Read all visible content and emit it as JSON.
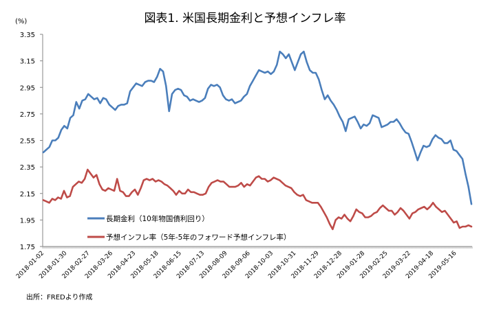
{
  "chart_data": {
    "type": "line",
    "title": "図表1. 米国長期金利と予想インフレ率",
    "ylabel": "(%)",
    "xlabel": "",
    "ylim": [
      1.75,
      3.35
    ],
    "yticks": [
      "3.35",
      "3.15",
      "2.95",
      "2.75",
      "2.55",
      "2.35",
      "2.15",
      "1.95",
      "1.75"
    ],
    "ytick_values": [
      3.35,
      3.15,
      2.95,
      2.75,
      2.55,
      2.35,
      2.15,
      1.95,
      1.75
    ],
    "xtick_labels": [
      "2018-01-02",
      "2018-01-30",
      "2018-02-27",
      "2018-03-26",
      "2018-04-23",
      "2018-05-18",
      "2018-06-15",
      "2018-07-13",
      "2018-08-09",
      "2018-09-06",
      "2018-10-03",
      "2018-10-31",
      "2018-11-29",
      "2018-12-28",
      "2019-01-28",
      "2019-02-25",
      "2019-03-22",
      "2019-04-18",
      "2019-05-16"
    ],
    "grid": false,
    "legend_position": "bottom-left-inside",
    "source": "出所：FREDより作成",
    "series": [
      {
        "name": "長期金利（10年物国債利回り）",
        "color": "#4A7EBB",
        "values": [
          2.46,
          2.48,
          2.5,
          2.55,
          2.55,
          2.57,
          2.63,
          2.66,
          2.64,
          2.72,
          2.74,
          2.84,
          2.79,
          2.85,
          2.86,
          2.9,
          2.88,
          2.86,
          2.87,
          2.83,
          2.87,
          2.86,
          2.82,
          2.8,
          2.78,
          2.81,
          2.82,
          2.82,
          2.83,
          2.92,
          2.95,
          2.98,
          2.97,
          2.96,
          2.99,
          3.0,
          3.0,
          2.99,
          3.03,
          3.09,
          3.07,
          2.96,
          2.77,
          2.9,
          2.93,
          2.94,
          2.93,
          2.89,
          2.88,
          2.85,
          2.86,
          2.85,
          2.84,
          2.85,
          2.87,
          2.94,
          2.97,
          2.96,
          2.97,
          2.95,
          2.89,
          2.86,
          2.85,
          2.86,
          2.83,
          2.84,
          2.85,
          2.88,
          2.9,
          2.96,
          3.0,
          3.04,
          3.08,
          3.07,
          3.06,
          3.07,
          3.05,
          3.07,
          3.12,
          3.22,
          3.2,
          3.17,
          3.2,
          3.14,
          3.08,
          3.14,
          3.2,
          3.22,
          3.14,
          3.08,
          3.06,
          3.06,
          3.01,
          2.93,
          2.86,
          2.89,
          2.85,
          2.82,
          2.78,
          2.73,
          2.69,
          2.62,
          2.71,
          2.72,
          2.73,
          2.69,
          2.64,
          2.67,
          2.66,
          2.68,
          2.74,
          2.73,
          2.72,
          2.65,
          2.66,
          2.67,
          2.69,
          2.69,
          2.71,
          2.68,
          2.64,
          2.61,
          2.6,
          2.54,
          2.47,
          2.4,
          2.46,
          2.51,
          2.5,
          2.51,
          2.56,
          2.59,
          2.57,
          2.56,
          2.53,
          2.53,
          2.55,
          2.48,
          2.47,
          2.44,
          2.41,
          2.3,
          2.2,
          2.07
        ]
      },
      {
        "name": "予想インフレ率（5年-5年のフォワード予想インフレ率）",
        "color": "#BE4B48",
        "values": [
          2.1,
          2.09,
          2.08,
          2.11,
          2.1,
          2.12,
          2.11,
          2.17,
          2.12,
          2.13,
          2.2,
          2.22,
          2.24,
          2.23,
          2.26,
          2.33,
          2.3,
          2.27,
          2.29,
          2.22,
          2.18,
          2.17,
          2.19,
          2.18,
          2.17,
          2.26,
          2.17,
          2.16,
          2.13,
          2.13,
          2.16,
          2.18,
          2.14,
          2.19,
          2.25,
          2.26,
          2.25,
          2.26,
          2.24,
          2.25,
          2.24,
          2.22,
          2.21,
          2.19,
          2.17,
          2.14,
          2.17,
          2.15,
          2.15,
          2.18,
          2.16,
          2.16,
          2.15,
          2.14,
          2.14,
          2.15,
          2.2,
          2.23,
          2.24,
          2.25,
          2.24,
          2.24,
          2.22,
          2.2,
          2.2,
          2.2,
          2.21,
          2.23,
          2.2,
          2.22,
          2.21,
          2.24,
          2.27,
          2.28,
          2.26,
          2.26,
          2.24,
          2.25,
          2.27,
          2.26,
          2.25,
          2.23,
          2.21,
          2.2,
          2.19,
          2.16,
          2.14,
          2.13,
          2.14,
          2.1,
          2.09,
          2.08,
          2.08,
          2.08,
          2.05,
          2.01,
          1.97,
          1.92,
          1.88,
          1.95,
          1.97,
          1.96,
          1.99,
          1.96,
          1.94,
          1.98,
          2.03,
          2.01,
          2.0,
          1.97,
          1.97,
          1.98,
          2.0,
          2.01,
          2.04,
          2.06,
          2.04,
          2.02,
          2.02,
          1.99,
          2.01,
          2.04,
          2.02,
          1.99,
          1.96,
          2.0,
          2.01,
          2.03,
          2.04,
          2.05,
          2.03,
          2.05,
          2.08,
          2.05,
          2.03,
          2.01,
          2.02,
          1.99,
          1.96,
          1.93,
          1.94,
          1.89,
          1.9,
          1.9,
          1.91,
          1.9
        ]
      }
    ]
  },
  "legend": {
    "items": [
      {
        "label": "長期金利（10年物国債利回り）",
        "color": "#4A7EBB"
      },
      {
        "label": "予想インフレ率（5年-5年のフォワード予想インフレ率）",
        "color": "#BE4B48"
      }
    ]
  },
  "axis_color": "#868686"
}
